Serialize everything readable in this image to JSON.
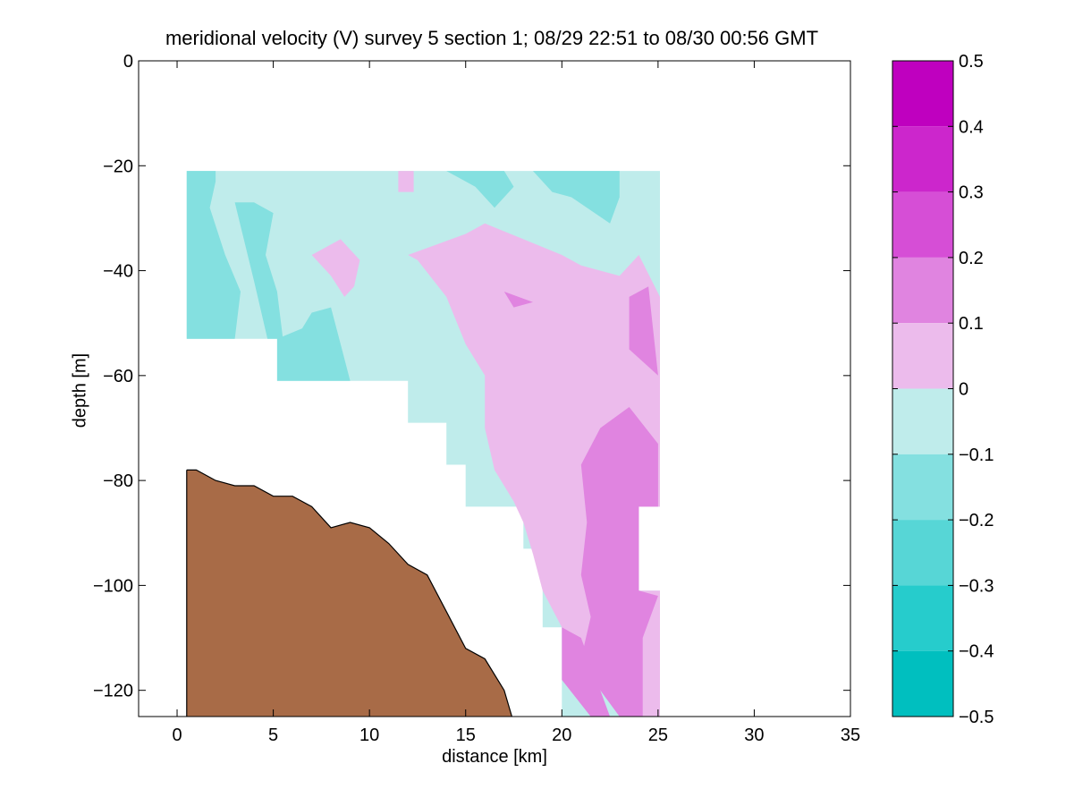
{
  "chart_data": {
    "type": "heatmap",
    "title": "meridional velocity (V) survey 5 section 1; 08/29 22:51 to 08/30 00:56 GMT",
    "xlabel": "distance [km]",
    "ylabel": "depth [m]",
    "xlim": [
      -2,
      35
    ],
    "ylim": [
      -125,
      0
    ],
    "xticks": [
      0,
      5,
      10,
      15,
      20,
      25,
      30,
      35
    ],
    "yticks": [
      0,
      -20,
      -40,
      -60,
      -80,
      -100,
      -120
    ],
    "xtick_labels": [
      "0",
      "5",
      "10",
      "15",
      "20",
      "25",
      "30",
      "35"
    ],
    "ytick_labels": [
      "0",
      "−20",
      "−40",
      "−60",
      "−80",
      "−100",
      "−120"
    ],
    "grid": false,
    "colorbar": {
      "ticks": [
        0.5,
        0.4,
        0.3,
        0.2,
        0.1,
        0,
        -0.1,
        -0.2,
        -0.3,
        -0.4,
        -0.5
      ],
      "tick_labels": [
        "0.5",
        "0.4",
        "0.3",
        "0.2",
        "0.1",
        "0",
        "−0.1",
        "−0.2",
        "−0.3",
        "−0.4",
        "−0.5"
      ],
      "levels": [
        {
          "from": 0.4,
          "to": 0.5,
          "color": "#bf00bf"
        },
        {
          "from": 0.3,
          "to": 0.4,
          "color": "#cc26cc"
        },
        {
          "from": 0.2,
          "to": 0.3,
          "color": "#d64ed6"
        },
        {
          "from": 0.1,
          "to": 0.2,
          "color": "#e084e0"
        },
        {
          "from": 0.0,
          "to": 0.1,
          "color": "#ecbbec"
        },
        {
          "from": -0.1,
          "to": 0.0,
          "color": "#bfeceb"
        },
        {
          "from": -0.2,
          "to": -0.1,
          "color": "#84e0e0"
        },
        {
          "from": -0.3,
          "to": -0.2,
          "color": "#57d6d6"
        },
        {
          "from": -0.4,
          "to": -0.3,
          "color": "#26cccc"
        },
        {
          "from": -0.5,
          "to": -0.4,
          "color": "#00bfbf"
        }
      ]
    },
    "colors": {
      "seafloor": "#a86b47",
      "negative_light": "#bfeceb",
      "negative_mid": "#84e0e0",
      "positive_light": "#ecbbec",
      "positive_mid": "#e084e0"
    },
    "data_region": [
      [
        0.5,
        -21
      ],
      [
        25.1,
        -21
      ],
      [
        25.1,
        -85
      ],
      [
        24,
        -85
      ],
      [
        24,
        -101
      ],
      [
        25.1,
        -101
      ],
      [
        25.1,
        -125
      ],
      [
        20,
        -125
      ],
      [
        20,
        -108
      ],
      [
        19,
        -108
      ],
      [
        19,
        -93
      ],
      [
        18,
        -93
      ],
      [
        18,
        -85
      ],
      [
        15,
        -85
      ],
      [
        15,
        -77
      ],
      [
        14,
        -77
      ],
      [
        14,
        -69
      ],
      [
        12,
        -69
      ],
      [
        12,
        -61
      ],
      [
        5.2,
        -61
      ],
      [
        5.2,
        -53
      ],
      [
        0.5,
        -53
      ]
    ],
    "seafloor_profile": [
      [
        0.5,
        -78
      ],
      [
        1,
        -78
      ],
      [
        2,
        -80
      ],
      [
        3,
        -81
      ],
      [
        4,
        -81
      ],
      [
        5,
        -83
      ],
      [
        6,
        -83
      ],
      [
        7,
        -85
      ],
      [
        8,
        -89
      ],
      [
        9,
        -88
      ],
      [
        10,
        -89
      ],
      [
        11,
        -92
      ],
      [
        12,
        -96
      ],
      [
        13,
        -98
      ],
      [
        14,
        -105
      ],
      [
        15,
        -112
      ],
      [
        16,
        -114
      ],
      [
        17,
        -120
      ],
      [
        17.4,
        -125
      ]
    ],
    "contour_regions": [
      {
        "level": 0.05,
        "points": [
          [
            11.5,
            -21
          ],
          [
            12.3,
            -21
          ],
          [
            12.3,
            -25
          ],
          [
            11.5,
            -25
          ]
        ]
      },
      {
        "level": 0.05,
        "points": [
          [
            7,
            -37
          ],
          [
            8.5,
            -34
          ],
          [
            9.5,
            -38
          ],
          [
            9.2,
            -43
          ],
          [
            8.7,
            -45
          ],
          [
            8,
            -41
          ]
        ]
      },
      {
        "level": 0.05,
        "points": [
          [
            12,
            -37
          ],
          [
            13.5,
            -35
          ],
          [
            15,
            -33
          ],
          [
            16,
            -31
          ],
          [
            18,
            -34
          ],
          [
            20,
            -37
          ],
          [
            21,
            -39
          ],
          [
            23,
            -41
          ],
          [
            24,
            -37
          ],
          [
            25.1,
            -45
          ],
          [
            25.1,
            -85
          ],
          [
            24,
            -85
          ],
          [
            24,
            -101
          ],
          [
            25.1,
            -101
          ],
          [
            25.1,
            -125
          ],
          [
            24,
            -125
          ],
          [
            23,
            -120
          ],
          [
            22,
            -114
          ],
          [
            20,
            -108
          ],
          [
            19,
            -101
          ],
          [
            18.5,
            -94
          ],
          [
            18,
            -88
          ],
          [
            17.5,
            -84
          ],
          [
            16.5,
            -78
          ],
          [
            16,
            -70
          ],
          [
            16,
            -60
          ],
          [
            15,
            -54
          ],
          [
            14,
            -45
          ],
          [
            12.5,
            -38
          ]
        ]
      },
      {
        "level": 0.15,
        "points": [
          [
            17,
            -44
          ],
          [
            18.5,
            -46
          ],
          [
            17.5,
            -47
          ]
        ]
      },
      {
        "level": 0.15,
        "points": [
          [
            23.5,
            -45
          ],
          [
            24.5,
            -43
          ],
          [
            25,
            -60
          ],
          [
            23.5,
            -55
          ]
        ]
      },
      {
        "level": 0.15,
        "points": [
          [
            22,
            -70
          ],
          [
            23.5,
            -66
          ],
          [
            25,
            -73
          ],
          [
            25,
            -85
          ],
          [
            24,
            -85
          ],
          [
            24,
            -101
          ],
          [
            25,
            -102
          ],
          [
            24.2,
            -110
          ],
          [
            24.2,
            -125
          ],
          [
            23,
            -125
          ],
          [
            22,
            -120
          ],
          [
            21,
            -114
          ],
          [
            21.5,
            -106
          ],
          [
            21,
            -98
          ],
          [
            21.3,
            -88
          ],
          [
            21,
            -77
          ]
        ]
      },
      {
        "level": 0.15,
        "points": [
          [
            20,
            -108
          ],
          [
            21,
            -110
          ],
          [
            22,
            -120
          ],
          [
            22.5,
            -125
          ],
          [
            21.5,
            -125
          ],
          [
            20,
            -118
          ]
        ]
      },
      {
        "level": -0.15,
        "points": [
          [
            0.5,
            -21
          ],
          [
            2,
            -21
          ],
          [
            2,
            -23
          ],
          [
            1.7,
            -28
          ],
          [
            2.5,
            -37
          ],
          [
            3.3,
            -44
          ],
          [
            3,
            -53
          ],
          [
            0.5,
            -53
          ]
        ]
      },
      {
        "level": -0.15,
        "points": [
          [
            3,
            -27
          ],
          [
            4,
            -27
          ],
          [
            5,
            -29
          ],
          [
            4.6,
            -37
          ],
          [
            5.2,
            -44
          ],
          [
            5.5,
            -53
          ],
          [
            4.7,
            -53
          ],
          [
            4,
            -42
          ]
        ]
      },
      {
        "level": -0.15,
        "points": [
          [
            5.2,
            -53
          ],
          [
            6.5,
            -51
          ],
          [
            7,
            -48
          ],
          [
            8,
            -47
          ],
          [
            8.5,
            -54
          ],
          [
            9,
            -61
          ],
          [
            5.2,
            -61
          ]
        ]
      },
      {
        "level": -0.15,
        "points": [
          [
            14,
            -21
          ],
          [
            17,
            -21
          ],
          [
            17.5,
            -24
          ],
          [
            16.5,
            -28
          ],
          [
            15.5,
            -24
          ]
        ]
      },
      {
        "level": -0.15,
        "points": [
          [
            18.5,
            -21
          ],
          [
            23,
            -21
          ],
          [
            23,
            -26
          ],
          [
            22.5,
            -31
          ],
          [
            20.5,
            -26
          ],
          [
            19.5,
            -25
          ]
        ]
      }
    ],
    "series": []
  }
}
